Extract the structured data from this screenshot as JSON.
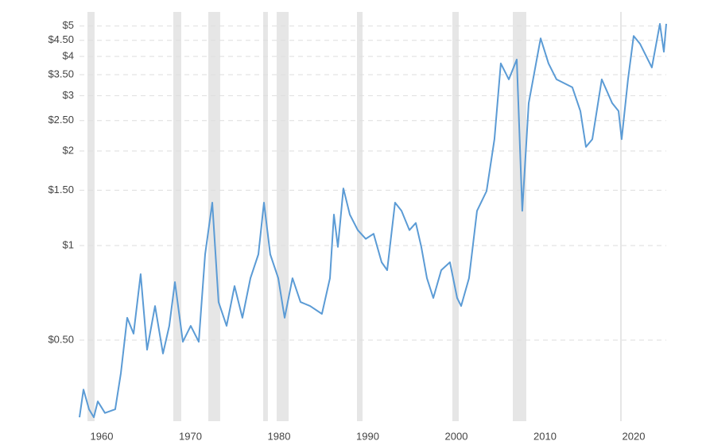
{
  "chart_data": {
    "type": "line",
    "color": "#5b9bd5",
    "log_y": true,
    "grid": true,
    "xlim": [
      1957.49,
      2023.68
    ],
    "ylim": [
      0.276,
      5.23
    ],
    "xticks": [
      1960,
      1970,
      1980,
      1990,
      2000,
      2010,
      2020
    ],
    "yticks": [
      {
        "value": 0.5,
        "label": "$0.50"
      },
      {
        "value": 1,
        "label": "$1"
      },
      {
        "value": 1.5,
        "label": "$1.50"
      },
      {
        "value": 2,
        "label": "$2"
      },
      {
        "value": 2.5,
        "label": "$2.50"
      },
      {
        "value": 3,
        "label": "$3"
      },
      {
        "value": 3.5,
        "label": "$3.50"
      },
      {
        "value": 4,
        "label": "$4"
      },
      {
        "value": 4.5,
        "label": "$4.50"
      },
      {
        "value": 5,
        "label": "$5"
      }
    ],
    "recessions": [
      {
        "start": 1958.39,
        "end": 1959.19
      },
      {
        "start": 1968.07,
        "end": 1968.97
      },
      {
        "start": 1972.02,
        "end": 1973.36
      },
      {
        "start": 1978.21,
        "end": 1978.74
      },
      {
        "start": 1979.73,
        "end": 1981.08
      },
      {
        "start": 1988.79,
        "end": 1989.42
      },
      {
        "start": 1999.55,
        "end": 2000.27
      },
      {
        "start": 2006.37,
        "end": 2007.89
      },
      {
        "start": 2018.48,
        "end": 2018.66
      }
    ],
    "x": [
      1957.49,
      1957.94,
      1958.57,
      1959.1,
      1959.55,
      1960.36,
      1961.52,
      1962.15,
      1962.87,
      1963.59,
      1964.39,
      1965.11,
      1966.01,
      1966.91,
      1967.62,
      1968.25,
      1969.15,
      1970.04,
      1970.94,
      1971.66,
      1972.47,
      1973.18,
      1974.08,
      1974.98,
      1975.87,
      1976.77,
      1977.67,
      1978.3,
      1979.01,
      1979.91,
      1980.63,
      1981.52,
      1982.42,
      1983.5,
      1984.84,
      1985.74,
      1986.19,
      1986.64,
      1987.26,
      1987.98,
      1988.88,
      1989.78,
      1990.67,
      1991.57,
      1992.2,
      1993.09,
      1993.81,
      1994.71,
      1995.43,
      1996.05,
      1996.68,
      1997.4,
      1998.3,
      1999.28,
      2000.09,
      2000.54,
      2001.43,
      2002.33,
      2003.41,
      2004.3,
      2005.02,
      2005.92,
      2006.82,
      2007.44,
      2008.16,
      2009.51,
      2010.4,
      2011.3,
      2013.09,
      2013.99,
      2014.62,
      2015.34,
      2016.41,
      2017.58,
      2018.3,
      2018.65,
      2019.37,
      2020.0,
      2020.72,
      2021.61,
      2022.06,
      2022.96,
      2023.41,
      2023.68
    ],
    "values": [
      0.284,
      0.348,
      0.301,
      0.284,
      0.319,
      0.293,
      0.301,
      0.392,
      0.589,
      0.524,
      0.811,
      0.466,
      0.642,
      0.453,
      0.555,
      0.765,
      0.494,
      0.555,
      0.494,
      0.938,
      1.37,
      0.661,
      0.555,
      0.743,
      0.589,
      0.787,
      0.938,
      1.37,
      0.938,
      0.787,
      0.589,
      0.787,
      0.661,
      0.642,
      0.606,
      0.787,
      1.255,
      0.99,
      1.52,
      1.255,
      1.12,
      1.05,
      1.09,
      0.885,
      0.835,
      1.37,
      1.29,
      1.12,
      1.18,
      0.99,
      0.787,
      0.681,
      0.835,
      0.885,
      0.681,
      0.642,
      0.787,
      1.29,
      1.49,
      2.18,
      3.8,
      3.38,
      3.91,
      1.29,
      2.84,
      4.57,
      3.8,
      3.38,
      3.19,
      2.68,
      2.06,
      2.18,
      3.38,
      2.84,
      2.68,
      2.18,
      3.38,
      4.65,
      4.39,
      3.91,
      3.69,
      5.08,
      4.14,
      5.08
    ]
  }
}
